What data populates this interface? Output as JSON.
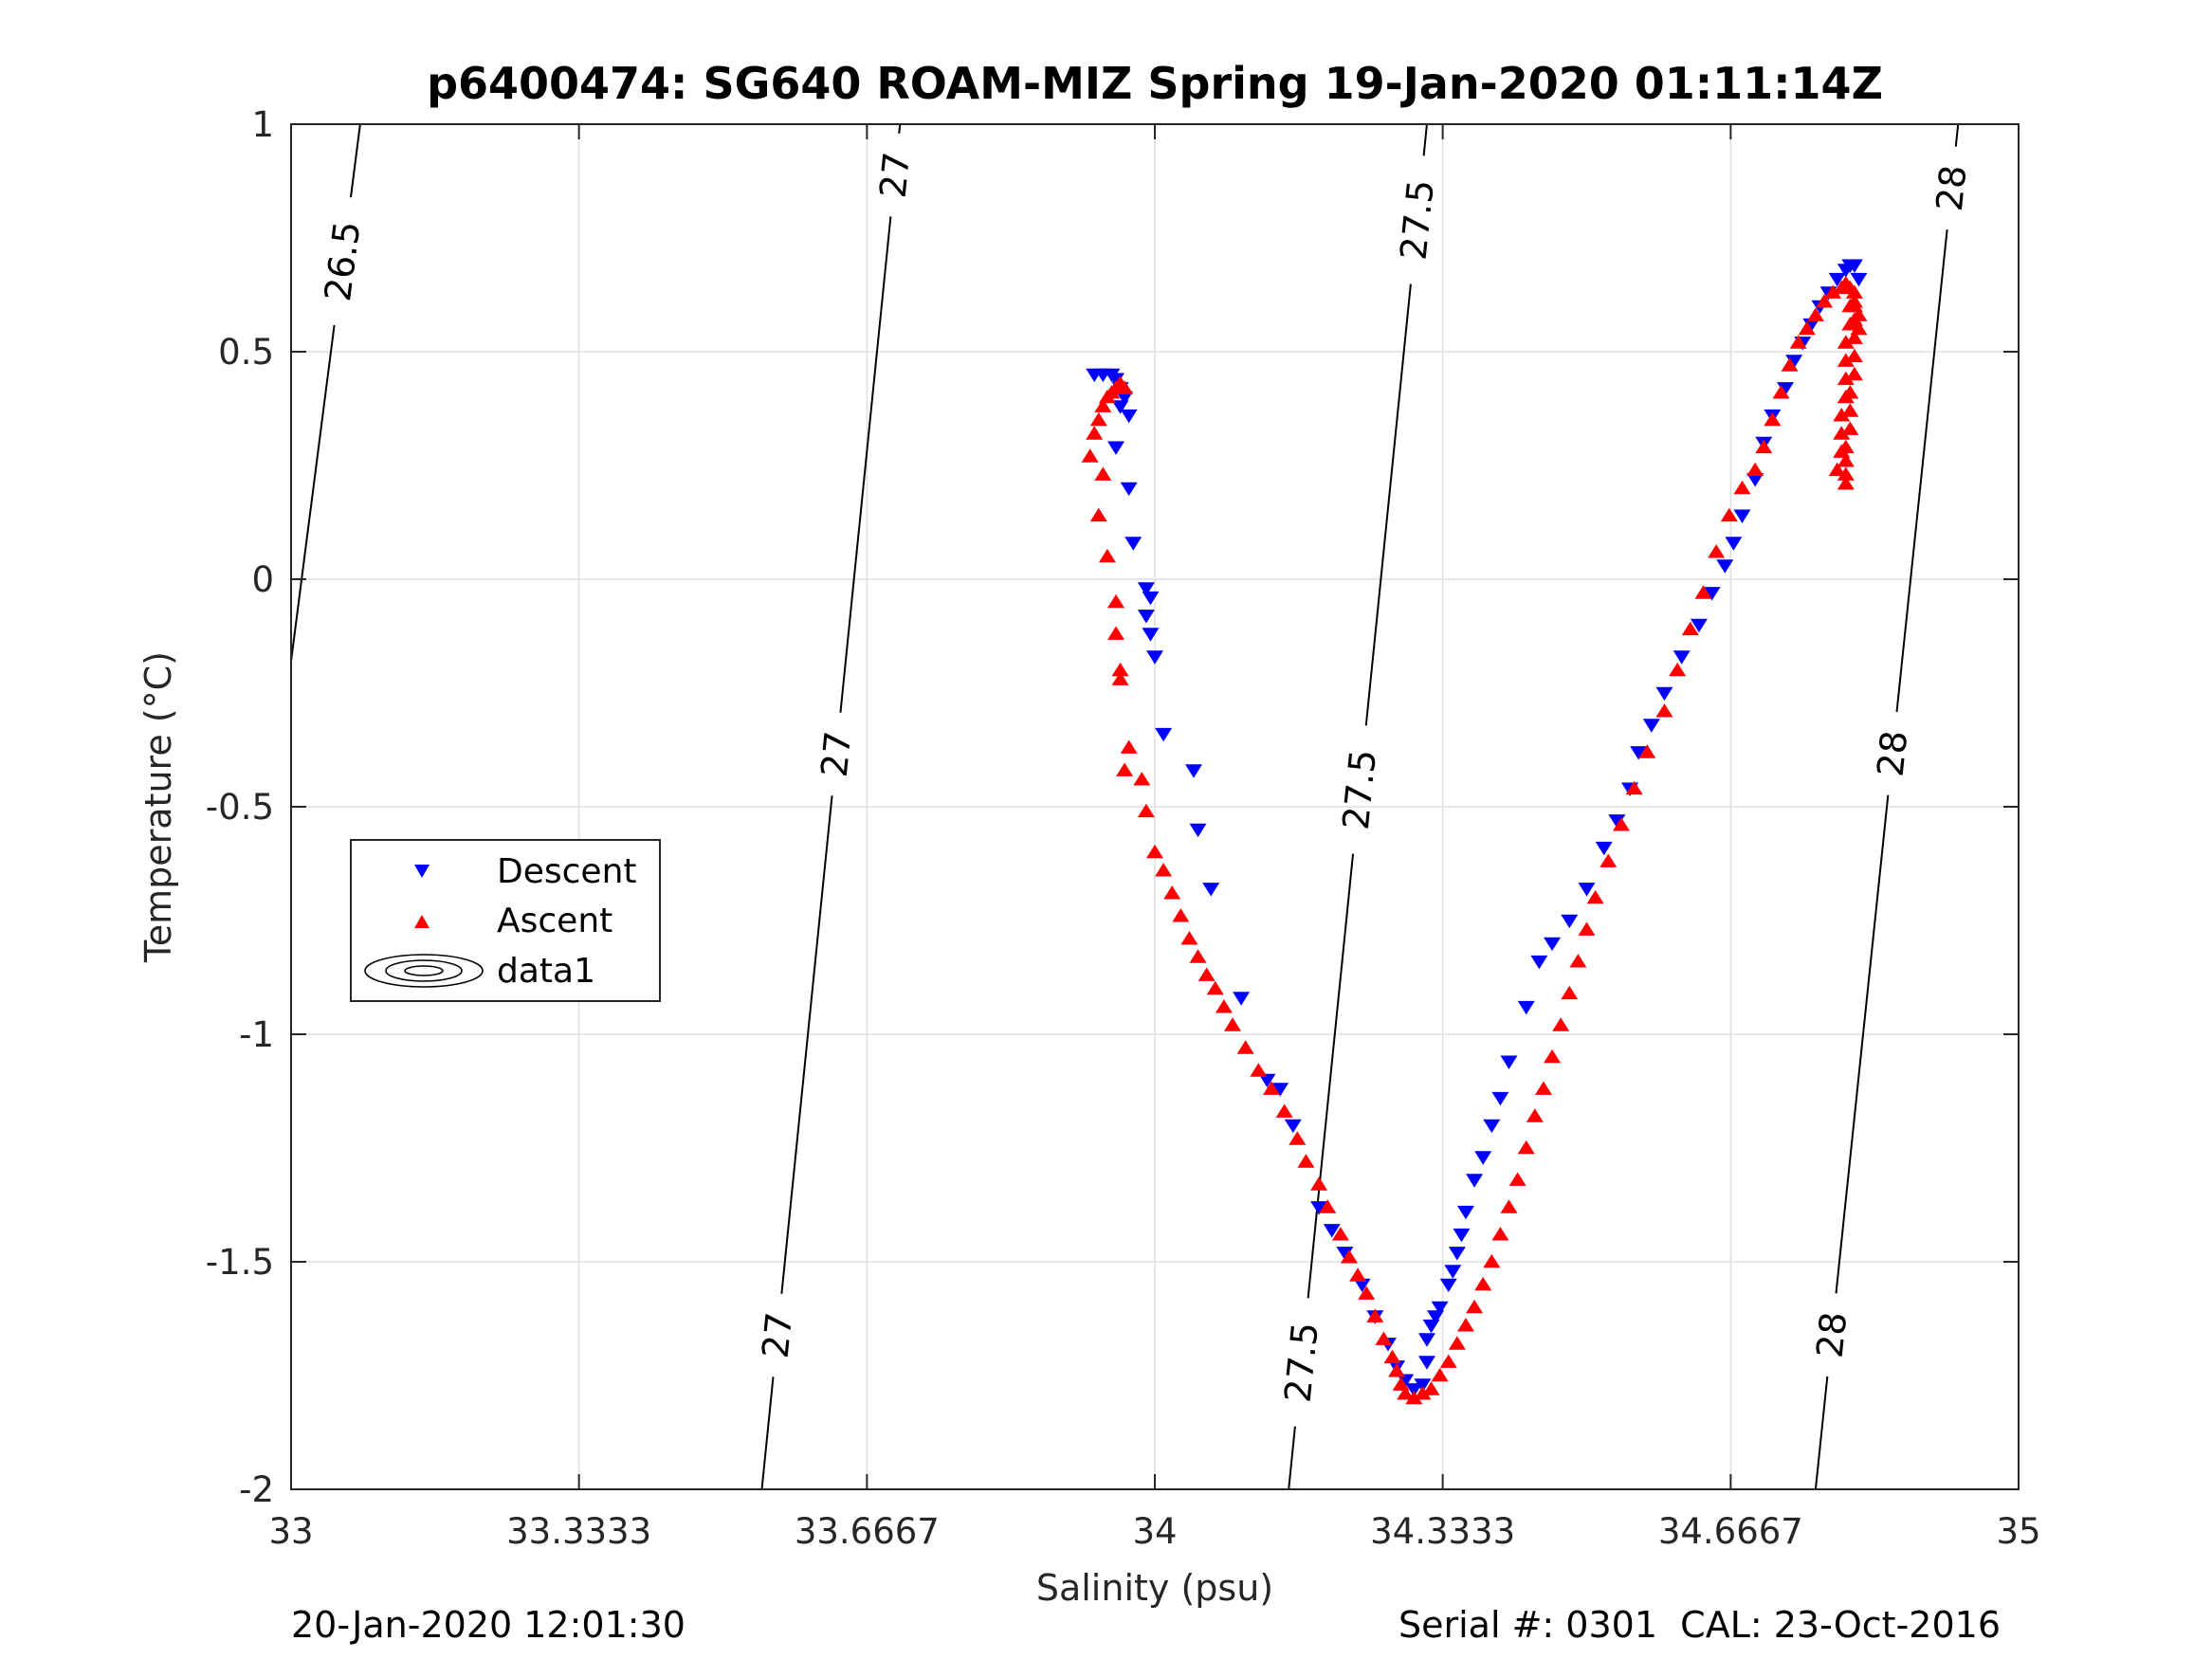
{
  "chart_data": {
    "type": "scatter",
    "title": "p6400474: SG640 ROAM-MIZ Spring 19-Jan-2020 01:11:14Z",
    "xlabel": "Salinity (psu)",
    "ylabel": "Temperature (°C)",
    "xlim": [
      33,
      35
    ],
    "ylim": [
      -2,
      1
    ],
    "xticks": [
      33,
      33.3333,
      33.6667,
      34,
      34.3333,
      34.6667,
      35
    ],
    "xtick_labels": [
      "33",
      "33.3333",
      "33.6667",
      "34",
      "34.3333",
      "34.6667",
      "35"
    ],
    "yticks": [
      -2,
      -1.5,
      -1,
      -0.5,
      0,
      0.5,
      1
    ],
    "ytick_labels": [
      "-2",
      "-1.5",
      "-1",
      "-0.5",
      "0",
      "0.5",
      "1"
    ],
    "grid": true,
    "legend_position": "middle-left",
    "legend": [
      "Descent",
      "Ascent",
      "data1"
    ],
    "colors": {
      "descent": "#0000ff",
      "ascent": "#ff0000",
      "contour": "#000000",
      "grid": "#dfdfdf"
    },
    "footer_left": "20-Jan-2020 12:01:30",
    "footer_right": "Serial #: 0301  CAL: 23-Oct-2016",
    "contours": [
      {
        "level": "26.5",
        "points": [
          [
            33.0,
            -0.18
          ],
          [
            33.08,
            1.0
          ]
        ],
        "labels": [
          {
            "x": 33.055,
            "y": 0.7
          }
        ]
      },
      {
        "level": "27",
        "points": [
          [
            33.545,
            -2.0
          ],
          [
            33.705,
            1.0
          ]
        ],
        "labels": [
          {
            "x": 33.555,
            "y": -1.66
          },
          {
            "x": 33.608,
            "y": -0.38
          },
          {
            "x": 33.69,
            "y": 0.89
          }
        ]
      },
      {
        "level": "27.5",
        "points": [
          [
            34.155,
            -2.0
          ],
          [
            34.315,
            1.0
          ]
        ],
        "labels": [
          {
            "x": 34.165,
            "y": -1.72
          },
          {
            "x": 34.224,
            "y": -0.46
          },
          {
            "x": 34.302,
            "y": 0.79
          }
        ]
      },
      {
        "level": "28",
        "points": [
          [
            34.765,
            -2.0
          ],
          [
            34.93,
            1.0
          ]
        ],
        "labels": [
          {
            "x": 34.78,
            "y": -1.66
          },
          {
            "x": 34.838,
            "y": -0.38
          },
          {
            "x": 34.92,
            "y": 0.86
          }
        ]
      }
    ],
    "series": [
      {
        "name": "Descent",
        "points": [
          [
            33.93,
            0.45
          ],
          [
            33.94,
            0.45
          ],
          [
            33.95,
            0.45
          ],
          [
            33.955,
            0.44
          ],
          [
            33.96,
            0.42
          ],
          [
            33.965,
            0.4
          ],
          [
            33.96,
            0.38
          ],
          [
            33.97,
            0.36
          ],
          [
            33.955,
            0.29
          ],
          [
            33.97,
            0.2
          ],
          [
            33.975,
            0.08
          ],
          [
            33.99,
            -0.02
          ],
          [
            33.995,
            -0.04
          ],
          [
            33.99,
            -0.08
          ],
          [
            33.995,
            -0.12
          ],
          [
            34.0,
            -0.17
          ],
          [
            34.01,
            -0.34
          ],
          [
            34.045,
            -0.42
          ],
          [
            34.05,
            -0.55
          ],
          [
            34.065,
            -0.68
          ],
          [
            34.1,
            -0.92
          ],
          [
            34.13,
            -1.1
          ],
          [
            34.145,
            -1.12
          ],
          [
            34.16,
            -1.2
          ],
          [
            34.19,
            -1.38
          ],
          [
            34.205,
            -1.43
          ],
          [
            34.22,
            -1.48
          ],
          [
            34.24,
            -1.55
          ],
          [
            34.255,
            -1.62
          ],
          [
            34.27,
            -1.68
          ],
          [
            34.28,
            -1.73
          ],
          [
            34.29,
            -1.76
          ],
          [
            34.3,
            -1.78
          ],
          [
            34.31,
            -1.77
          ],
          [
            34.315,
            -1.72
          ],
          [
            34.315,
            -1.67
          ],
          [
            34.32,
            -1.64
          ],
          [
            34.325,
            -1.62
          ],
          [
            34.33,
            -1.6
          ],
          [
            34.34,
            -1.55
          ],
          [
            34.345,
            -1.52
          ],
          [
            34.35,
            -1.48
          ],
          [
            34.355,
            -1.44
          ],
          [
            34.36,
            -1.39
          ],
          [
            34.37,
            -1.32
          ],
          [
            34.38,
            -1.27
          ],
          [
            34.39,
            -1.2
          ],
          [
            34.4,
            -1.14
          ],
          [
            34.41,
            -1.06
          ],
          [
            34.43,
            -0.94
          ],
          [
            34.445,
            -0.84
          ],
          [
            34.46,
            -0.8
          ],
          [
            34.48,
            -0.75
          ],
          [
            34.5,
            -0.68
          ],
          [
            34.52,
            -0.59
          ],
          [
            34.535,
            -0.53
          ],
          [
            34.55,
            -0.46
          ],
          [
            34.56,
            -0.38
          ],
          [
            34.575,
            -0.32
          ],
          [
            34.59,
            -0.25
          ],
          [
            34.61,
            -0.17
          ],
          [
            34.63,
            -0.1
          ],
          [
            34.645,
            -0.03
          ],
          [
            34.66,
            0.03
          ],
          [
            34.67,
            0.08
          ],
          [
            34.68,
            0.14
          ],
          [
            34.695,
            0.22
          ],
          [
            34.705,
            0.3
          ],
          [
            34.715,
            0.36
          ],
          [
            34.73,
            0.42
          ],
          [
            34.74,
            0.48
          ],
          [
            34.75,
            0.52
          ],
          [
            34.76,
            0.56
          ],
          [
            34.77,
            0.6
          ],
          [
            34.78,
            0.63
          ],
          [
            34.79,
            0.66
          ],
          [
            34.8,
            0.68
          ],
          [
            34.805,
            0.69
          ],
          [
            34.81,
            0.69
          ],
          [
            34.815,
            0.66
          ]
        ]
      },
      {
        "name": "Ascent",
        "points": [
          [
            33.925,
            0.27
          ],
          [
            33.93,
            0.32
          ],
          [
            33.935,
            0.35
          ],
          [
            33.94,
            0.38
          ],
          [
            33.945,
            0.4
          ],
          [
            33.95,
            0.41
          ],
          [
            33.955,
            0.42
          ],
          [
            33.96,
            0.43
          ],
          [
            33.965,
            0.42
          ],
          [
            33.94,
            0.23
          ],
          [
            33.935,
            0.14
          ],
          [
            33.945,
            0.05
          ],
          [
            33.955,
            -0.05
          ],
          [
            33.955,
            -0.12
          ],
          [
            33.96,
            -0.2
          ],
          [
            33.96,
            -0.22
          ],
          [
            33.97,
            -0.37
          ],
          [
            33.965,
            -0.42
          ],
          [
            33.985,
            -0.44
          ],
          [
            33.99,
            -0.51
          ],
          [
            34.0,
            -0.6
          ],
          [
            34.01,
            -0.64
          ],
          [
            34.02,
            -0.69
          ],
          [
            34.03,
            -0.74
          ],
          [
            34.04,
            -0.79
          ],
          [
            34.05,
            -0.83
          ],
          [
            34.06,
            -0.87
          ],
          [
            34.07,
            -0.9
          ],
          [
            34.08,
            -0.94
          ],
          [
            34.09,
            -0.98
          ],
          [
            34.105,
            -1.03
          ],
          [
            34.12,
            -1.08
          ],
          [
            34.135,
            -1.12
          ],
          [
            34.15,
            -1.17
          ],
          [
            34.165,
            -1.23
          ],
          [
            34.175,
            -1.28
          ],
          [
            34.19,
            -1.33
          ],
          [
            34.2,
            -1.38
          ],
          [
            34.215,
            -1.44
          ],
          [
            34.225,
            -1.49
          ],
          [
            34.235,
            -1.53
          ],
          [
            34.245,
            -1.57
          ],
          [
            34.255,
            -1.62
          ],
          [
            34.265,
            -1.67
          ],
          [
            34.275,
            -1.71
          ],
          [
            34.28,
            -1.74
          ],
          [
            34.285,
            -1.77
          ],
          [
            34.29,
            -1.79
          ],
          [
            34.3,
            -1.8
          ],
          [
            34.31,
            -1.79
          ],
          [
            34.32,
            -1.78
          ],
          [
            34.33,
            -1.75
          ],
          [
            34.34,
            -1.72
          ],
          [
            34.35,
            -1.68
          ],
          [
            34.36,
            -1.64
          ],
          [
            34.37,
            -1.6
          ],
          [
            34.38,
            -1.55
          ],
          [
            34.39,
            -1.5
          ],
          [
            34.4,
            -1.44
          ],
          [
            34.41,
            -1.38
          ],
          [
            34.42,
            -1.32
          ],
          [
            34.43,
            -1.25
          ],
          [
            34.44,
            -1.18
          ],
          [
            34.45,
            -1.12
          ],
          [
            34.46,
            -1.05
          ],
          [
            34.47,
            -0.98
          ],
          [
            34.48,
            -0.91
          ],
          [
            34.49,
            -0.84
          ],
          [
            34.5,
            -0.77
          ],
          [
            34.51,
            -0.7
          ],
          [
            34.525,
            -0.62
          ],
          [
            34.54,
            -0.54
          ],
          [
            34.555,
            -0.46
          ],
          [
            34.57,
            -0.38
          ],
          [
            34.59,
            -0.29
          ],
          [
            34.605,
            -0.2
          ],
          [
            34.62,
            -0.11
          ],
          [
            34.635,
            -0.03
          ],
          [
            34.65,
            0.06
          ],
          [
            34.665,
            0.14
          ],
          [
            34.68,
            0.2
          ],
          [
            34.695,
            0.24
          ],
          [
            34.705,
            0.29
          ],
          [
            34.715,
            0.35
          ],
          [
            34.725,
            0.41
          ],
          [
            34.735,
            0.47
          ],
          [
            34.745,
            0.52
          ],
          [
            34.755,
            0.55
          ],
          [
            34.765,
            0.58
          ],
          [
            34.775,
            0.61
          ],
          [
            34.785,
            0.63
          ],
          [
            34.795,
            0.64
          ],
          [
            34.8,
            0.65
          ],
          [
            34.805,
            0.64
          ],
          [
            34.81,
            0.61
          ],
          [
            34.81,
            0.57
          ],
          [
            34.81,
            0.53
          ],
          [
            34.81,
            0.49
          ],
          [
            34.81,
            0.45
          ],
          [
            34.805,
            0.41
          ],
          [
            34.805,
            0.37
          ],
          [
            34.805,
            0.33
          ],
          [
            34.8,
            0.29
          ],
          [
            34.8,
            0.26
          ],
          [
            34.8,
            0.23
          ],
          [
            34.8,
            0.21
          ],
          [
            34.805,
            0.6
          ],
          [
            34.805,
            0.56
          ],
          [
            34.8,
            0.52
          ],
          [
            34.8,
            0.48
          ],
          [
            34.8,
            0.44
          ],
          [
            34.8,
            0.4
          ],
          [
            34.795,
            0.36
          ],
          [
            34.795,
            0.32
          ],
          [
            34.795,
            0.28
          ],
          [
            34.79,
            0.24
          ],
          [
            34.81,
            0.63
          ],
          [
            34.81,
            0.6
          ],
          [
            34.815,
            0.58
          ],
          [
            34.815,
            0.55
          ]
        ]
      }
    ]
  }
}
